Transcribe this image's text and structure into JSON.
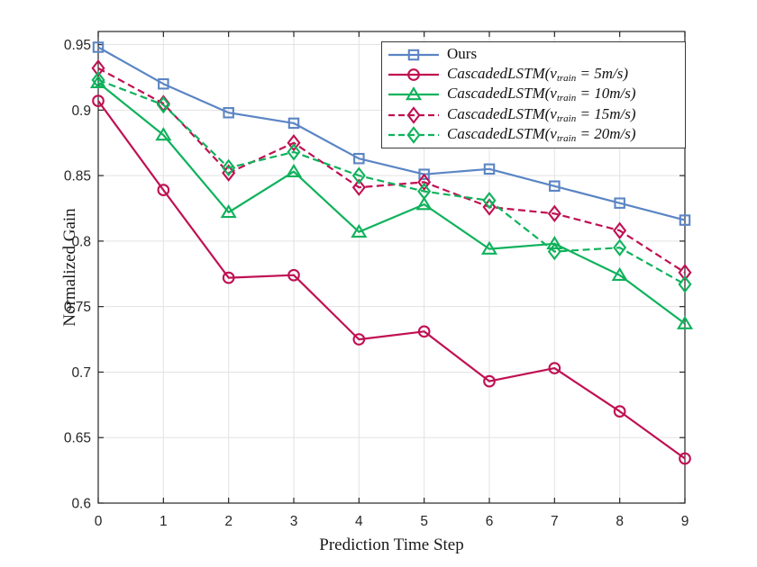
{
  "figure": {
    "background": "#ffffff",
    "axis_color": "#262626",
    "grid_color": "#e2e2e2",
    "legend_border_color": "#3a3a3a"
  },
  "chart_data": {
    "type": "line",
    "title": "",
    "xlabel": "Prediction Time Step",
    "ylabel": "Normalized Gain",
    "xlim": [
      0,
      9
    ],
    "ylim": [
      0.6,
      0.96
    ],
    "xticks": [
      0,
      1,
      2,
      3,
      4,
      5,
      6,
      7,
      8,
      9
    ],
    "xtick_labels": [
      "0",
      "1",
      "2",
      "3",
      "4",
      "5",
      "6",
      "7",
      "8",
      "9"
    ],
    "yticks": [
      0.6,
      0.65,
      0.7,
      0.75,
      0.8,
      0.85,
      0.9,
      0.95
    ],
    "ytick_labels": [
      "0.6",
      "0.65",
      "0.7",
      "0.75",
      "0.8",
      "0.85",
      "0.9",
      "0.95"
    ],
    "grid": true,
    "legend_position": "top-right",
    "x": [
      0,
      1,
      2,
      3,
      4,
      5,
      6,
      7,
      8,
      9
    ],
    "series": [
      {
        "name": "Ours",
        "label": {
          "pre": "Ours",
          "sub": "",
          "post": ""
        },
        "italic": false,
        "color": "#5B85C4",
        "marker": "square",
        "line_style": "solid",
        "values": [
          0.948,
          0.92,
          0.898,
          0.89,
          0.863,
          0.851,
          0.855,
          0.842,
          0.829,
          0.816
        ]
      },
      {
        "name": "CascadedLSTM(v_train = 5m/s)",
        "label": {
          "pre": "CascadedLSTM(v",
          "sub": "train",
          "post": " = 5m/s)"
        },
        "italic": true,
        "color": "#C01052",
        "marker": "circle",
        "line_style": "solid",
        "values": [
          0.907,
          0.839,
          0.772,
          0.774,
          0.725,
          0.731,
          0.693,
          0.703,
          0.67,
          0.634
        ]
      },
      {
        "name": "CascadedLSTM(v_train = 10m/s)",
        "label": {
          "pre": "CascadedLSTM(v",
          "sub": "train",
          "post": " = 10m/s)"
        },
        "italic": true,
        "color": "#0FB25C",
        "marker": "triangle",
        "line_style": "solid",
        "values": [
          0.921,
          0.881,
          0.822,
          0.853,
          0.807,
          0.828,
          0.794,
          0.798,
          0.774,
          0.737
        ]
      },
      {
        "name": "CascadedLSTM(v_train = 15m/s)",
        "label": {
          "pre": "CascadedLSTM(v",
          "sub": "train",
          "post": " = 15m/s)"
        },
        "italic": true,
        "color": "#C01052",
        "marker": "diamond",
        "line_style": "dashed",
        "values": [
          0.932,
          0.905,
          0.852,
          0.875,
          0.841,
          0.845,
          0.826,
          0.821,
          0.808,
          0.776
        ]
      },
      {
        "name": "CascadedLSTM(v_train = 20m/s)",
        "label": {
          "pre": "CascadedLSTM(v",
          "sub": "train",
          "post": " = 20m/s)"
        },
        "italic": true,
        "color": "#0FB25C",
        "marker": "diamond",
        "line_style": "dashed",
        "values": [
          0.923,
          0.904,
          0.856,
          0.868,
          0.85,
          0.838,
          0.831,
          0.792,
          0.795,
          0.767
        ]
      }
    ]
  }
}
